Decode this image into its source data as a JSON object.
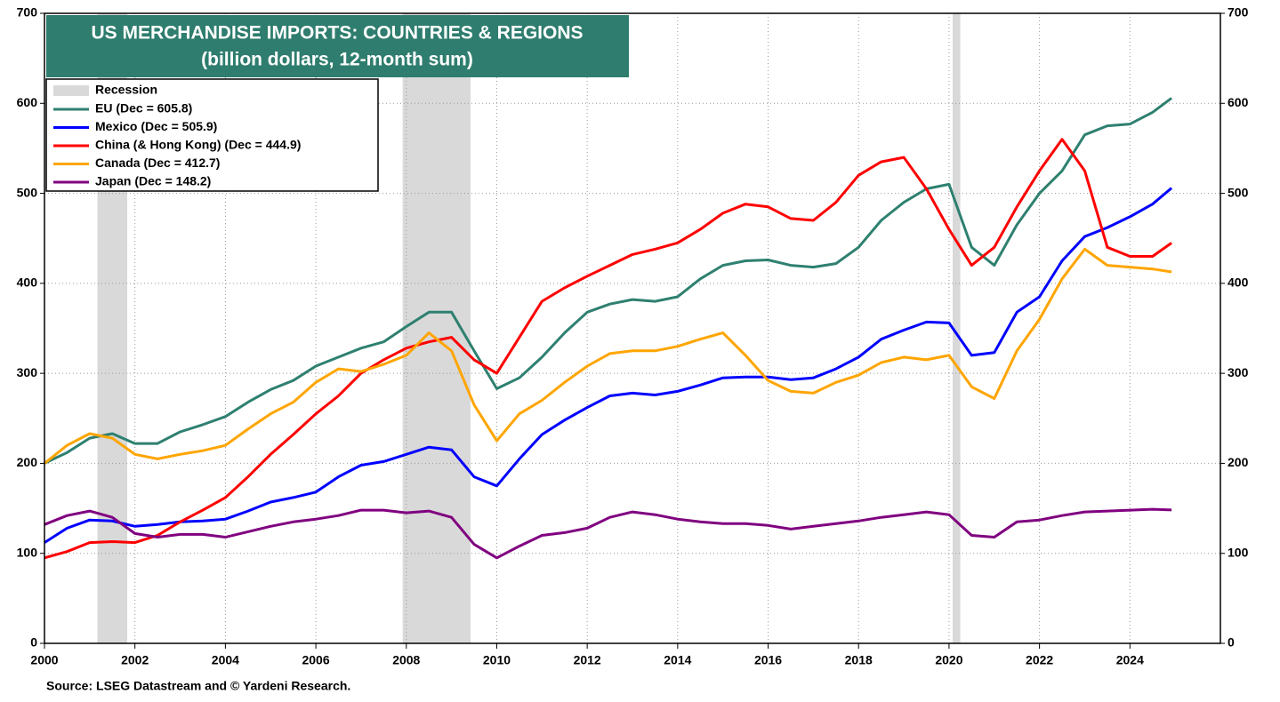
{
  "chart_data": {
    "type": "line",
    "title": "US MERCHANDISE IMPORTS: COUNTRIES & REGIONS",
    "subtitle": "(billion dollars, 12-month sum)",
    "source": "Source: LSEG Datastream and © Yardeni Research.",
    "recession_label": "Recession",
    "recession_color": "#d9d9d9",
    "recessions": [
      [
        2001.17,
        2001.83
      ],
      [
        2007.92,
        2009.42
      ],
      [
        2020.08,
        2020.25
      ]
    ],
    "x": [
      2000,
      2000.5,
      2001,
      2001.5,
      2002,
      2002.5,
      2003,
      2003.5,
      2004,
      2004.5,
      2005,
      2005.5,
      2006,
      2006.5,
      2007,
      2007.5,
      2008,
      2008.5,
      2009,
      2009.5,
      2010,
      2010.5,
      2011,
      2011.5,
      2012,
      2012.5,
      2013,
      2013.5,
      2014,
      2014.5,
      2015,
      2015.5,
      2016,
      2016.5,
      2017,
      2017.5,
      2018,
      2018.5,
      2019,
      2019.5,
      2020,
      2020.5,
      2021,
      2021.5,
      2022,
      2022.5,
      2023,
      2023.5,
      2024,
      2024.5,
      2024.92
    ],
    "series": [
      {
        "name": "EU (Dec = 605.8)",
        "color": "#2e8070",
        "values": [
          200,
          212,
          228,
          233,
          222,
          222,
          235,
          243,
          252,
          268,
          282,
          292,
          308,
          318,
          328,
          335,
          352,
          368,
          368,
          325,
          283,
          295,
          318,
          345,
          368,
          377,
          382,
          380,
          385,
          405,
          420,
          425,
          426,
          420,
          418,
          422,
          440,
          470,
          490,
          505,
          510,
          440,
          420,
          465,
          500,
          525,
          565,
          575,
          577,
          590,
          605.8
        ]
      },
      {
        "name": "Mexico (Dec = 505.9)",
        "color": "#0000ff",
        "values": [
          112,
          128,
          137,
          136,
          130,
          132,
          135,
          136,
          138,
          147,
          157,
          162,
          168,
          185,
          198,
          202,
          210,
          218,
          215,
          185,
          175,
          205,
          232,
          248,
          262,
          275,
          278,
          276,
          280,
          287,
          295,
          296,
          296,
          293,
          295,
          305,
          318,
          338,
          348,
          357,
          356,
          320,
          323,
          368,
          385,
          425,
          452,
          462,
          474,
          488,
          505.9
        ]
      },
      {
        "name": "China (& Hong Kong) (Dec = 444.9)",
        "color": "#ff0000",
        "values": [
          95,
          102,
          112,
          113,
          112,
          120,
          135,
          148,
          162,
          185,
          210,
          232,
          255,
          275,
          300,
          315,
          328,
          335,
          340,
          315,
          300,
          340,
          380,
          395,
          408,
          420,
          432,
          438,
          445,
          460,
          478,
          488,
          485,
          472,
          470,
          490,
          520,
          535,
          540,
          505,
          460,
          420,
          440,
          485,
          525,
          560,
          525,
          440,
          430,
          430,
          444.9
        ]
      },
      {
        "name": "Canada (Dec = 412.7)",
        "color": "#ffa500",
        "values": [
          200,
          220,
          233,
          228,
          210,
          205,
          210,
          214,
          220,
          238,
          255,
          268,
          290,
          305,
          302,
          310,
          320,
          345,
          325,
          265,
          225,
          255,
          270,
          290,
          308,
          322,
          325,
          325,
          330,
          338,
          345,
          320,
          292,
          280,
          278,
          290,
          298,
          312,
          318,
          315,
          320,
          285,
          272,
          325,
          360,
          405,
          438,
          420,
          418,
          416,
          412.7
        ]
      },
      {
        "name": "Japan (Dec = 148.2)",
        "color": "#800080",
        "values": [
          132,
          142,
          147,
          140,
          122,
          118,
          121,
          121,
          118,
          124,
          130,
          135,
          138,
          142,
          148,
          148,
          145,
          147,
          140,
          110,
          95,
          108,
          120,
          123,
          128,
          140,
          146,
          143,
          138,
          135,
          133,
          133,
          131,
          127,
          130,
          133,
          136,
          140,
          143,
          146,
          143,
          120,
          118,
          135,
          137,
          142,
          146,
          147,
          148,
          149,
          148.2
        ]
      }
    ],
    "xlim": [
      2000,
      2026
    ],
    "xticks": [
      2000,
      2002,
      2004,
      2006,
      2008,
      2010,
      2012,
      2014,
      2016,
      2018,
      2020,
      2022,
      2024
    ],
    "ylim": [
      0,
      700
    ],
    "yticks": [
      0,
      100,
      200,
      300,
      400,
      500,
      600,
      700
    ],
    "grid": true,
    "title_color": "#2e7d6e"
  }
}
